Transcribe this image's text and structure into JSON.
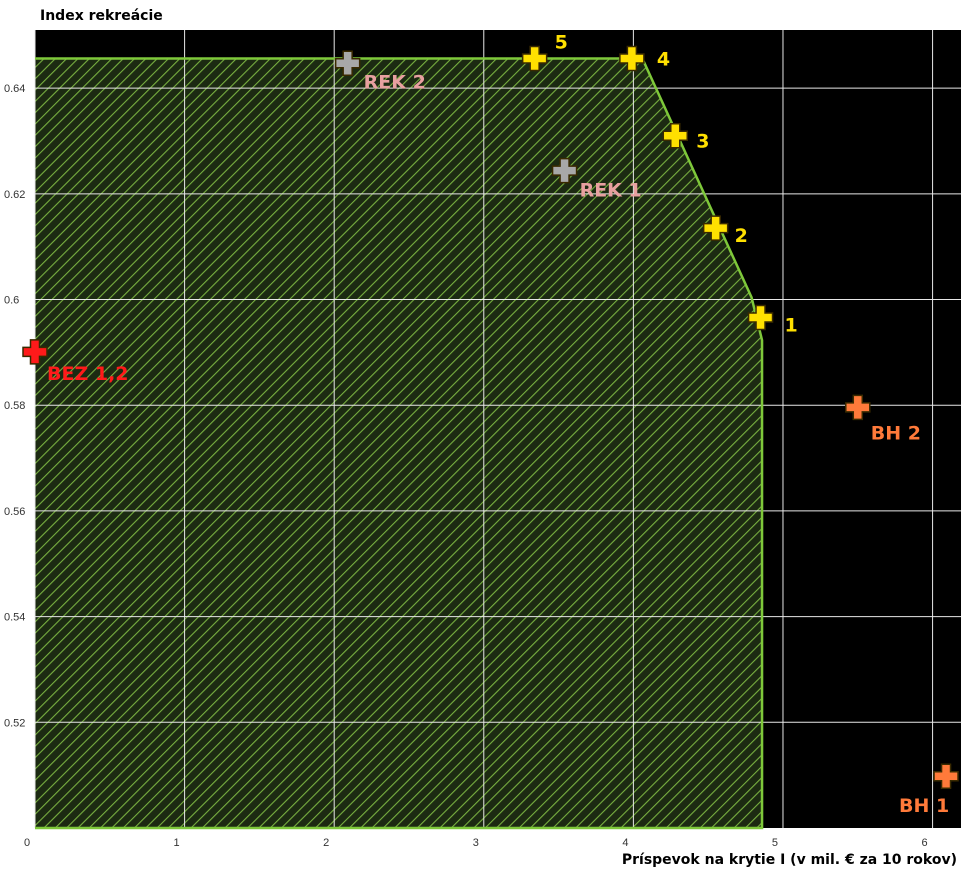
{
  "chart_data": {
    "type": "scatter",
    "ylabel": "Index rekreácie",
    "xlabel": "Príspevok na krytie I (v mil. € za 10 rokov)",
    "xlim": [
      0,
      6.19
    ],
    "xticks": [
      0,
      1,
      2,
      3,
      4,
      5,
      6
    ],
    "ylim": [
      0.5,
      0.651
    ],
    "yticks": [
      0.52,
      0.54,
      0.56,
      0.58,
      0.6,
      0.62,
      0.64
    ],
    "grid": true,
    "region": {
      "color": "#7ec83a",
      "x": [
        0,
        4.06,
        4.79,
        4.86,
        4.86,
        0
      ],
      "y": [
        0.6456,
        0.6456,
        0.6004,
        0.5923,
        0.5,
        0.5
      ]
    },
    "points": [
      {
        "label": "5",
        "x": 3.34,
        "y": 0.6456,
        "color": "#ffe000",
        "label_color": "#ffe000"
      },
      {
        "label": "4",
        "x": 3.99,
        "y": 0.6456,
        "color": "#ffe000",
        "label_color": "#ffe000"
      },
      {
        "label": "3",
        "x": 4.28,
        "y": 0.631,
        "color": "#ffe000",
        "label_color": "#ffe000"
      },
      {
        "label": "2",
        "x": 4.55,
        "y": 0.6135,
        "color": "#ffe000",
        "label_color": "#ffe000"
      },
      {
        "label": "1",
        "x": 4.85,
        "y": 0.5966,
        "color": "#ffe000",
        "label_color": "#ffe000"
      },
      {
        "label": "REK 2",
        "x": 2.09,
        "y": 0.6447,
        "color": "#a8a8a8",
        "label_color": "#e8a0a0"
      },
      {
        "label": "REK 1",
        "x": 3.54,
        "y": 0.6244,
        "color": "#a8a8a8",
        "label_color": "#e8a0a0"
      },
      {
        "label": "BEZ 1,2",
        "x": 0,
        "y": 0.5901,
        "color": "#ff1a1a",
        "label_color": "#ff1a1a"
      },
      {
        "label": "BH 2",
        "x": 5.5,
        "y": 0.5796,
        "color": "#ff7a3a",
        "label_color": "#ff7a3a"
      },
      {
        "label": "BH 1",
        "x": 6.09,
        "y": 0.5098,
        "color": "#ff7a3a",
        "label_color": "#ff7a3a"
      }
    ]
  }
}
